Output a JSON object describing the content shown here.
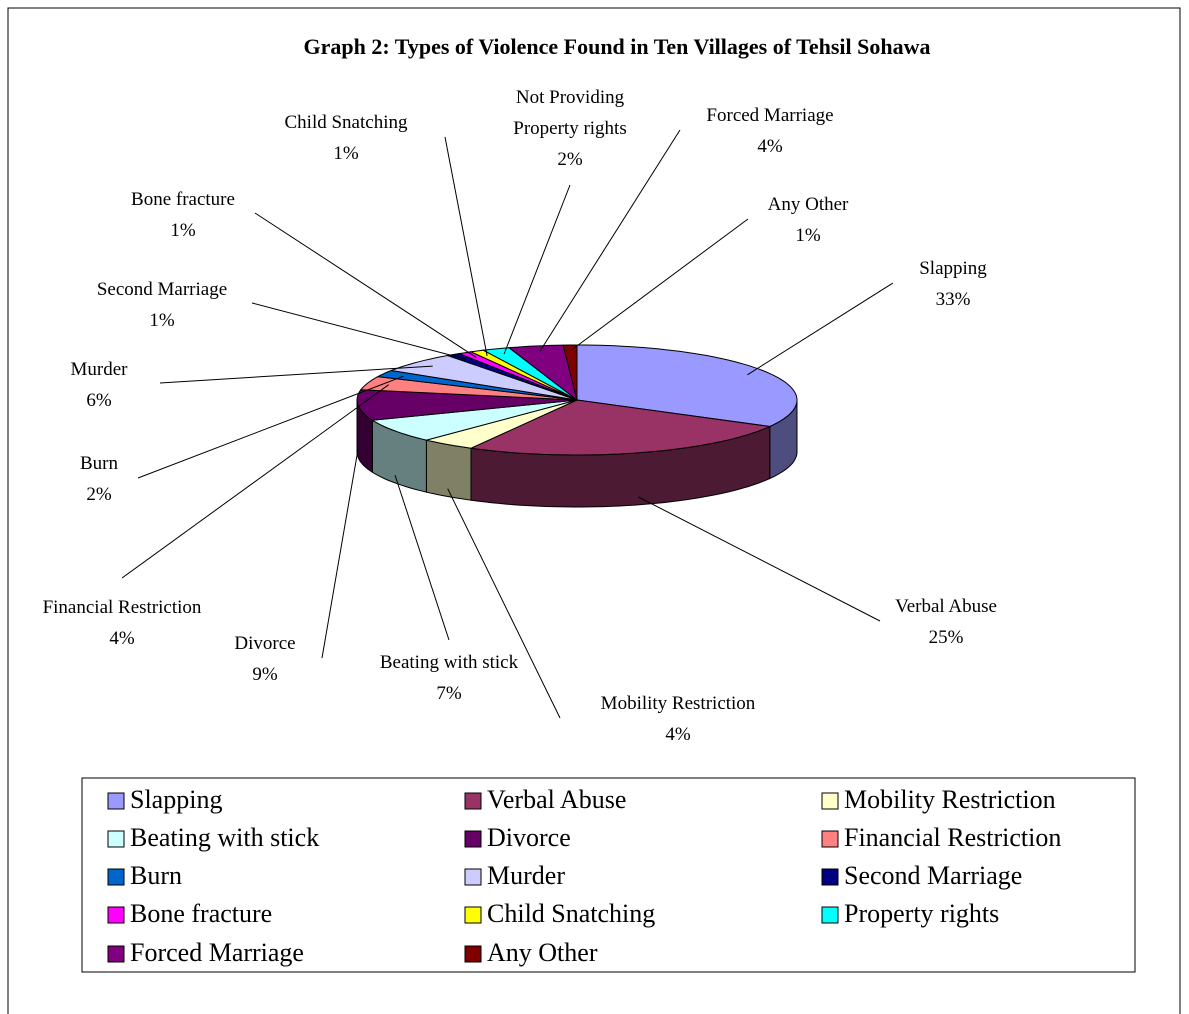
{
  "chart_data": {
    "type": "pie3d",
    "title": "Graph 2: Types of Violence Found in Ten Villages of Tehsil Sohawa",
    "categories": [
      "Slapping",
      "Verbal Abuse",
      "Mobility Restriction",
      "Beating with stick",
      "Divorce",
      "Financial Restriction",
      "Burn",
      "Murder",
      "Second Marriage",
      "Bone fracture",
      "Child Snatching",
      "Property rights",
      "Forced Marriage",
      "Any Other"
    ],
    "slice_labels": [
      "Slapping",
      "Verbal Abuse",
      "Mobility Restriction",
      "Beating with stick",
      "Divorce",
      "Financial Restriction",
      "Burn",
      "Murder",
      "Second Marriage",
      "Bone fracture",
      "Child Snatching",
      "Not Providing Property rights",
      "Forced Marriage",
      "Any Other"
    ],
    "values": [
      33,
      25,
      4,
      7,
      9,
      4,
      2,
      6,
      1,
      1,
      1,
      2,
      4,
      1
    ],
    "value_labels": [
      "33%",
      "25%",
      "4%",
      "7%",
      "9%",
      "4%",
      "2%",
      "6%",
      "1%",
      "1%",
      "1%",
      "2%",
      "4%",
      "1%"
    ],
    "colors": [
      "#9999ff",
      "#993366",
      "#ffffcc",
      "#ccffff",
      "#660066",
      "#ff8080",
      "#0066cc",
      "#ccccff",
      "#000080",
      "#ff00ff",
      "#ffff00",
      "#00ffff",
      "#800080",
      "#800000"
    ],
    "legend": "bottom"
  }
}
